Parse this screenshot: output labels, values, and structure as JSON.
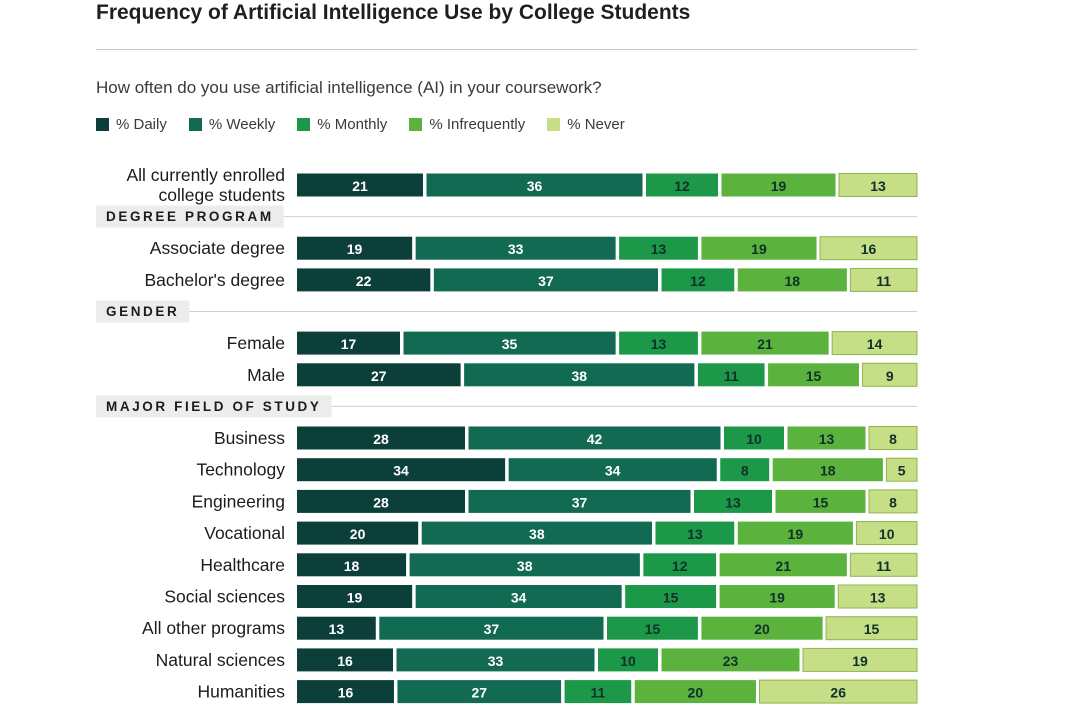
{
  "chart_data": {
    "type": "bar",
    "orientation": "horizontal",
    "stacked": true,
    "normalized": true,
    "title": "Frequency of Artificial Intelligence Use by College Students",
    "subtitle": "How often do you use artificial intelligence (AI) in your coursework?",
    "legend_position": "top-left",
    "series": [
      {
        "name": "% Daily",
        "color": "#0d3f3a",
        "text_color": "#ffffff"
      },
      {
        "name": "% Weekly",
        "color": "#126a52",
        "text_color": "#ffffff"
      },
      {
        "name": "% Monthly",
        "color": "#1c9848",
        "text_color": "#10302a"
      },
      {
        "name": "% Infrequently",
        "color": "#5bb23c",
        "text_color": "#10302a"
      },
      {
        "name": "% Never",
        "color": "#c6df86",
        "text_color": "#10302a"
      }
    ],
    "rows": [
      {
        "kind": "bar",
        "label_lines": [
          "All currently enrolled",
          "college students"
        ],
        "values": [
          21,
          36,
          12,
          19,
          13
        ]
      },
      {
        "kind": "group",
        "label": "DEGREE PROGRAM"
      },
      {
        "kind": "bar",
        "label_lines": [
          "Associate degree"
        ],
        "values": [
          19,
          33,
          13,
          19,
          16
        ]
      },
      {
        "kind": "bar",
        "label_lines": [
          "Bachelor's degree"
        ],
        "values": [
          22,
          37,
          12,
          18,
          11
        ]
      },
      {
        "kind": "group",
        "label": "GENDER"
      },
      {
        "kind": "bar",
        "label_lines": [
          "Female"
        ],
        "values": [
          17,
          35,
          13,
          21,
          14
        ]
      },
      {
        "kind": "bar",
        "label_lines": [
          "Male"
        ],
        "values": [
          27,
          38,
          11,
          15,
          9
        ]
      },
      {
        "kind": "group",
        "label": "MAJOR FIELD OF STUDY"
      },
      {
        "kind": "bar",
        "label_lines": [
          "Business"
        ],
        "values": [
          28,
          42,
          10,
          13,
          8
        ]
      },
      {
        "kind": "bar",
        "label_lines": [
          "Technology"
        ],
        "values": [
          34,
          34,
          8,
          18,
          5
        ]
      },
      {
        "kind": "bar",
        "label_lines": [
          "Engineering"
        ],
        "values": [
          28,
          37,
          13,
          15,
          8
        ]
      },
      {
        "kind": "bar",
        "label_lines": [
          "Vocational"
        ],
        "values": [
          20,
          38,
          13,
          19,
          10
        ]
      },
      {
        "kind": "bar",
        "label_lines": [
          "Healthcare"
        ],
        "values": [
          18,
          38,
          12,
          21,
          11
        ]
      },
      {
        "kind": "bar",
        "label_lines": [
          "Social sciences"
        ],
        "values": [
          19,
          34,
          15,
          19,
          13
        ]
      },
      {
        "kind": "bar",
        "label_lines": [
          "All other programs"
        ],
        "values": [
          13,
          37,
          15,
          20,
          15
        ]
      },
      {
        "kind": "bar",
        "label_lines": [
          "Natural sciences"
        ],
        "values": [
          16,
          33,
          10,
          23,
          19
        ]
      },
      {
        "kind": "bar",
        "label_lines": [
          "Humanities"
        ],
        "values": [
          16,
          27,
          11,
          20,
          26
        ]
      }
    ]
  }
}
